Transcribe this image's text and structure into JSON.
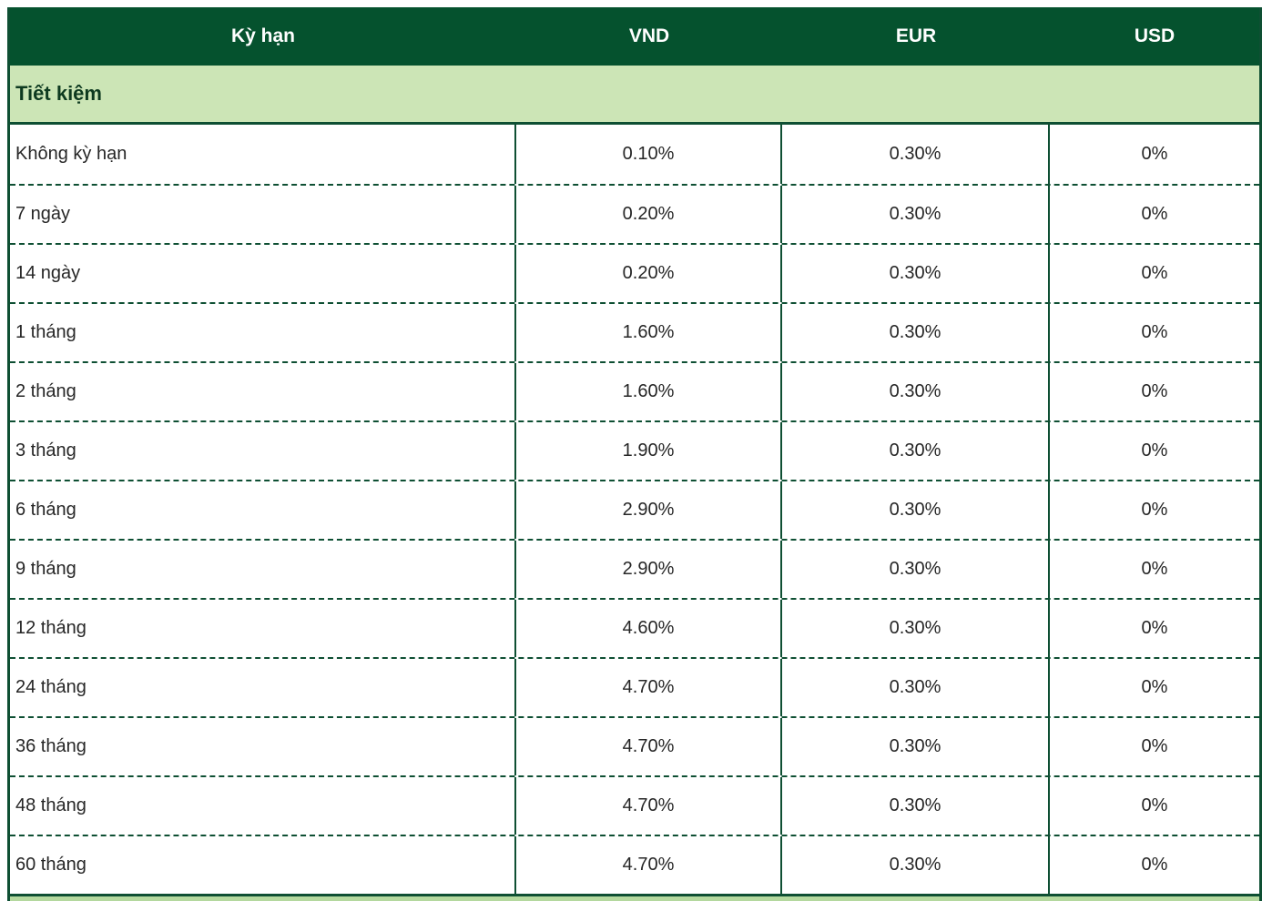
{
  "table": {
    "columns": [
      {
        "key": "term",
        "label": "Kỳ hạn"
      },
      {
        "key": "vnd",
        "label": "VND"
      },
      {
        "key": "eur",
        "label": "EUR"
      },
      {
        "key": "usd",
        "label": "USD"
      }
    ],
    "section": {
      "label": "Tiết kiệm"
    },
    "rows": [
      {
        "term": "Không kỳ hạn",
        "vnd": "0.10%",
        "eur": "0.30%",
        "usd": "0%"
      },
      {
        "term": "7 ngày",
        "vnd": "0.20%",
        "eur": "0.30%",
        "usd": "0%"
      },
      {
        "term": "14 ngày",
        "vnd": "0.20%",
        "eur": "0.30%",
        "usd": "0%"
      },
      {
        "term": "1 tháng",
        "vnd": "1.60%",
        "eur": "0.30%",
        "usd": "0%"
      },
      {
        "term": "2 tháng",
        "vnd": "1.60%",
        "eur": "0.30%",
        "usd": "0%"
      },
      {
        "term": "3 tháng",
        "vnd": "1.90%",
        "eur": "0.30%",
        "usd": "0%"
      },
      {
        "term": "6 tháng",
        "vnd": "2.90%",
        "eur": "0.30%",
        "usd": "0%"
      },
      {
        "term": "9 tháng",
        "vnd": "2.90%",
        "eur": "0.30%",
        "usd": "0%"
      },
      {
        "term": "12 tháng",
        "vnd": "4.60%",
        "eur": "0.30%",
        "usd": "0%"
      },
      {
        "term": "24 tháng",
        "vnd": "4.70%",
        "eur": "0.30%",
        "usd": "0%"
      },
      {
        "term": "36 tháng",
        "vnd": "4.70%",
        "eur": "0.30%",
        "usd": "0%"
      },
      {
        "term": "48 tháng",
        "vnd": "4.70%",
        "eur": "0.30%",
        "usd": "0%"
      },
      {
        "term": "60 tháng",
        "vnd": "4.70%",
        "eur": "0.30%",
        "usd": "0%"
      }
    ]
  },
  "colors": {
    "header_green": "#05522e",
    "section_green": "#cce5b6",
    "section_text": "#0e3a20",
    "border_green": "#0e4f33",
    "next_section_bar_green": "#b4d89e",
    "data_text": "#262626"
  }
}
